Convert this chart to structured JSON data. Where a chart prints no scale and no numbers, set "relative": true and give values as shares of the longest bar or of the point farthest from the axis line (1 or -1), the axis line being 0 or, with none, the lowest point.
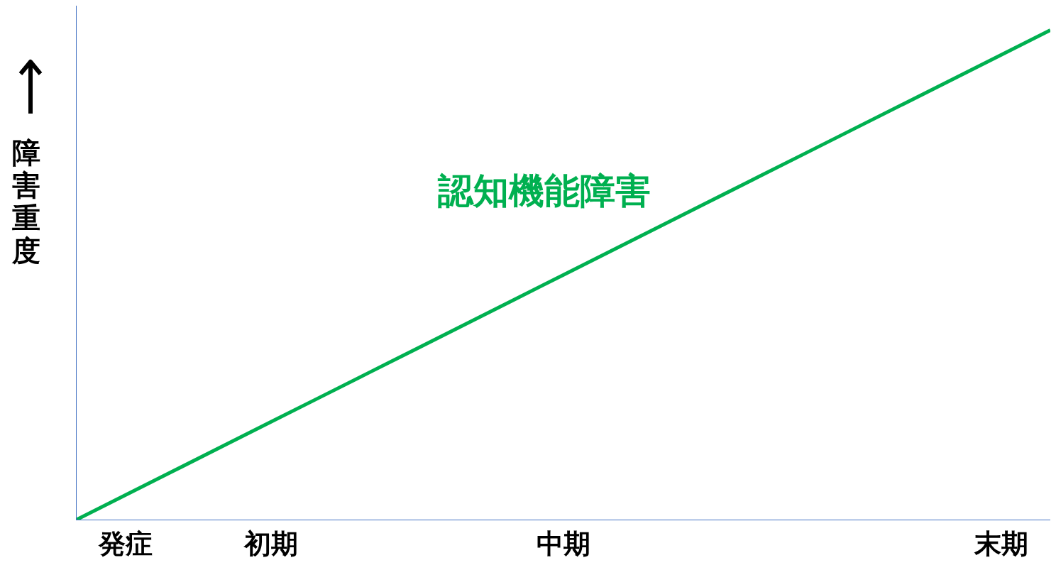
{
  "chart_data": {
    "type": "line",
    "relative": true,
    "ylabel": "障害重度",
    "annotations": [
      "認知機能障害"
    ],
    "categories": [
      null,
      "発症",
      null,
      null,
      "初期",
      null,
      null,
      null,
      null,
      null,
      "中期",
      null,
      null,
      null,
      null,
      null,
      null,
      null,
      null,
      "末期",
      null
    ],
    "series": [
      {
        "color": "#00b050",
        "values": [
          0,
          0.05,
          0.1,
          0.15,
          0.2,
          0.25,
          0.3,
          0.35,
          0.4,
          0.45,
          0.5,
          0.55,
          0.6,
          0.65,
          0.7,
          0.75,
          0.8,
          0.85,
          0.9,
          0.95,
          1
        ]
      }
    ],
    "grid": false,
    "marker": "none",
    "line_style": "solid"
  }
}
